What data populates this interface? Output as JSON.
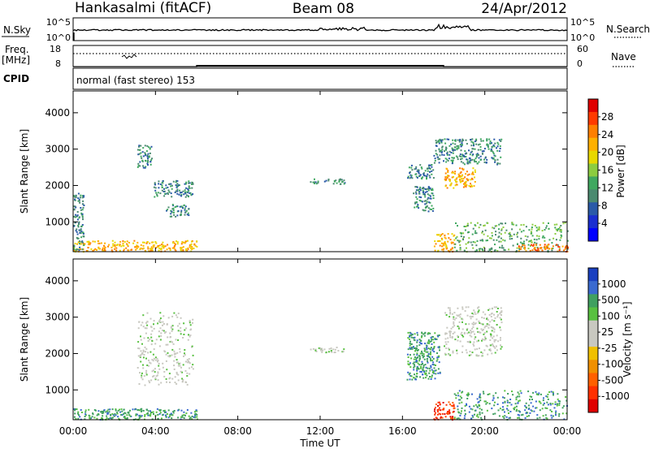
{
  "header": {
    "station": "Hankasalmi (fitACF)",
    "beam": "Beam 08",
    "date": "24/Apr/2012"
  },
  "sky_panel": {
    "left_label": "N.Sky",
    "right_label": "N.Search",
    "left_ticks": [
      "10^5",
      "10^0"
    ],
    "right_ticks": [
      "10^5",
      "10^0"
    ]
  },
  "freq_panel": {
    "left_label": "Freq.",
    "left_unit": "[MHz]",
    "right_label": "Nave",
    "left_ticks": [
      "18",
      "8"
    ],
    "right_ticks": [
      "60",
      "0"
    ]
  },
  "cpid": {
    "label": "CPID",
    "mode_text": "normal (fast stereo) 153"
  },
  "power_panel": {
    "ylabel": "Slant Range [km]",
    "yticks": [
      "4000",
      "3000",
      "2000",
      "1000"
    ],
    "colorbar_title": "Power [dB]",
    "colorbar_ticks": [
      "28",
      "24",
      "20",
      "16",
      "12",
      "8",
      "4"
    ],
    "colorbar_colors": [
      "#e00000",
      "#ff3a00",
      "#ff7f00",
      "#ffb000",
      "#e8d800",
      "#8ccc40",
      "#40a860",
      "#4b8a70",
      "#2a5aa8",
      "#1a2ed0",
      "#0000ff"
    ]
  },
  "velocity_panel": {
    "ylabel": "Slant Range [km]",
    "yticks": [
      "4000",
      "3000",
      "2000",
      "1000"
    ],
    "colorbar_title": "Velocity [m s⁻¹]",
    "colorbar_ticks": [
      "1000",
      "500",
      "100",
      "25",
      "-25",
      "-100",
      "-500",
      "-1000"
    ],
    "colorbar_colors": [
      "#1a40c0",
      "#3a6ad0",
      "#40a060",
      "#58c040",
      "#c8c8c0",
      "#c8c8c0",
      "#f0c000",
      "#f09000",
      "#ff6000",
      "#ff3000",
      "#e00000"
    ]
  },
  "x_axis": {
    "ticks": [
      "00:00",
      "04:00",
      "08:00",
      "12:00",
      "16:00",
      "20:00",
      "00:00"
    ],
    "xlabel": "Time UT"
  },
  "chart_data": {
    "type": "heatmap",
    "title": "Hankasalmi (fitACF)",
    "subtitle": "Beam 08",
    "date": "24/Apr/2012",
    "xlabel": "Time UT",
    "ylabel": "Slant Range [km]",
    "xlim_hours": [
      0,
      24
    ],
    "ylim_km": [
      180,
      4600
    ],
    "grid": false,
    "power_echoes": [
      {
        "t0": 0.0,
        "t1": 6.0,
        "r0": 200,
        "r1": 500,
        "level": 20
      },
      {
        "t0": 0.0,
        "t1": 0.5,
        "r0": 200,
        "r1": 1800,
        "level": 8
      },
      {
        "t0": 3.1,
        "t1": 3.8,
        "r0": 2500,
        "r1": 3150,
        "level": 8
      },
      {
        "t0": 3.9,
        "t1": 5.8,
        "r0": 1700,
        "r1": 2150,
        "level": 8
      },
      {
        "t0": 4.5,
        "t1": 5.6,
        "r0": 1150,
        "r1": 1500,
        "level": 8
      },
      {
        "t0": 11.5,
        "t1": 13.2,
        "r0": 2050,
        "r1": 2200,
        "level": 8
      },
      {
        "t0": 16.2,
        "t1": 17.5,
        "r0": 2200,
        "r1": 2600,
        "level": 8
      },
      {
        "t0": 16.5,
        "t1": 17.5,
        "r0": 1300,
        "r1": 2000,
        "level": 8
      },
      {
        "t0": 18.0,
        "t1": 19.5,
        "r0": 1950,
        "r1": 2500,
        "level": 20
      },
      {
        "t0": 17.5,
        "t1": 20.8,
        "r0": 2600,
        "r1": 3300,
        "level": 8
      },
      {
        "t0": 17.5,
        "t1": 18.5,
        "r0": 200,
        "r1": 700,
        "level": 20
      },
      {
        "t0": 18.5,
        "t1": 24.0,
        "r0": 200,
        "r1": 1000,
        "level": 12
      },
      {
        "t0": 21.5,
        "t1": 24.0,
        "r0": 200,
        "r1": 400,
        "level": 24
      }
    ],
    "velocity_echoes": [
      {
        "t0": 0.0,
        "t1": 6.0,
        "r0": 200,
        "r1": 500,
        "velocity": 100
      },
      {
        "t0": 3.1,
        "t1": 5.8,
        "r0": 1150,
        "r1": 3150,
        "velocity": 0
      },
      {
        "t0": 11.5,
        "t1": 13.2,
        "r0": 2050,
        "r1": 2200,
        "velocity": 0
      },
      {
        "t0": 16.2,
        "t1": 17.8,
        "r0": 1300,
        "r1": 2600,
        "velocity": 100
      },
      {
        "t0": 17.5,
        "t1": 18.5,
        "r0": 200,
        "r1": 700,
        "velocity": -100
      },
      {
        "t0": 18.0,
        "t1": 20.8,
        "r0": 1950,
        "r1": 3300,
        "velocity": 0
      },
      {
        "t0": 18.5,
        "t1": 24.0,
        "r0": 200,
        "r1": 1000,
        "velocity": 100
      }
    ],
    "frequency_mhz": [
      {
        "t0": 0.0,
        "t1": 6.0,
        "value": 10
      },
      {
        "t0": 6.0,
        "t1": 18.0,
        "value": 11
      },
      {
        "t0": 18.0,
        "t1": 24.0,
        "value": 10
      }
    ]
  }
}
